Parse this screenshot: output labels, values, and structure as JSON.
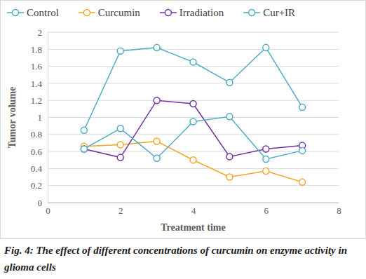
{
  "chart_data": {
    "type": "line",
    "title": "Fig. 4: The effect of different concentrations of curcumin on enzyme activity in glioma cells",
    "x_label": "Treatment time",
    "y_label": "Tumor volume",
    "x": [
      1,
      2,
      3,
      4,
      5,
      6,
      7
    ],
    "series": [
      {
        "name": "Control",
        "color": "#4bacc6",
        "values": [
          0.85,
          1.78,
          1.82,
          1.65,
          1.41,
          1.82,
          1.12
        ]
      },
      {
        "name": "Curcumin",
        "color": "#f5a623",
        "values": [
          0.66,
          0.68,
          0.72,
          0.5,
          0.3,
          0.37,
          0.24
        ]
      },
      {
        "name": "Irradiation",
        "color": "#7030a0",
        "values": [
          0.63,
          0.53,
          1.2,
          1.16,
          0.54,
          0.63,
          0.67
        ]
      },
      {
        "name": "Cur+IR",
        "color": "#4bacc6",
        "values": [
          0.63,
          0.87,
          0.52,
          0.95,
          1.01,
          0.51,
          0.61
        ]
      }
    ],
    "xlim": [
      0,
      8
    ],
    "xticks": [
      0,
      2,
      4,
      6,
      8
    ],
    "ylim": [
      0,
      2
    ],
    "yticks": [
      0,
      0.2,
      0.4,
      0.6,
      0.8,
      1,
      1.2,
      1.4,
      1.6,
      1.8,
      2
    ],
    "grid": true,
    "legend": "top",
    "marker": "circle"
  }
}
